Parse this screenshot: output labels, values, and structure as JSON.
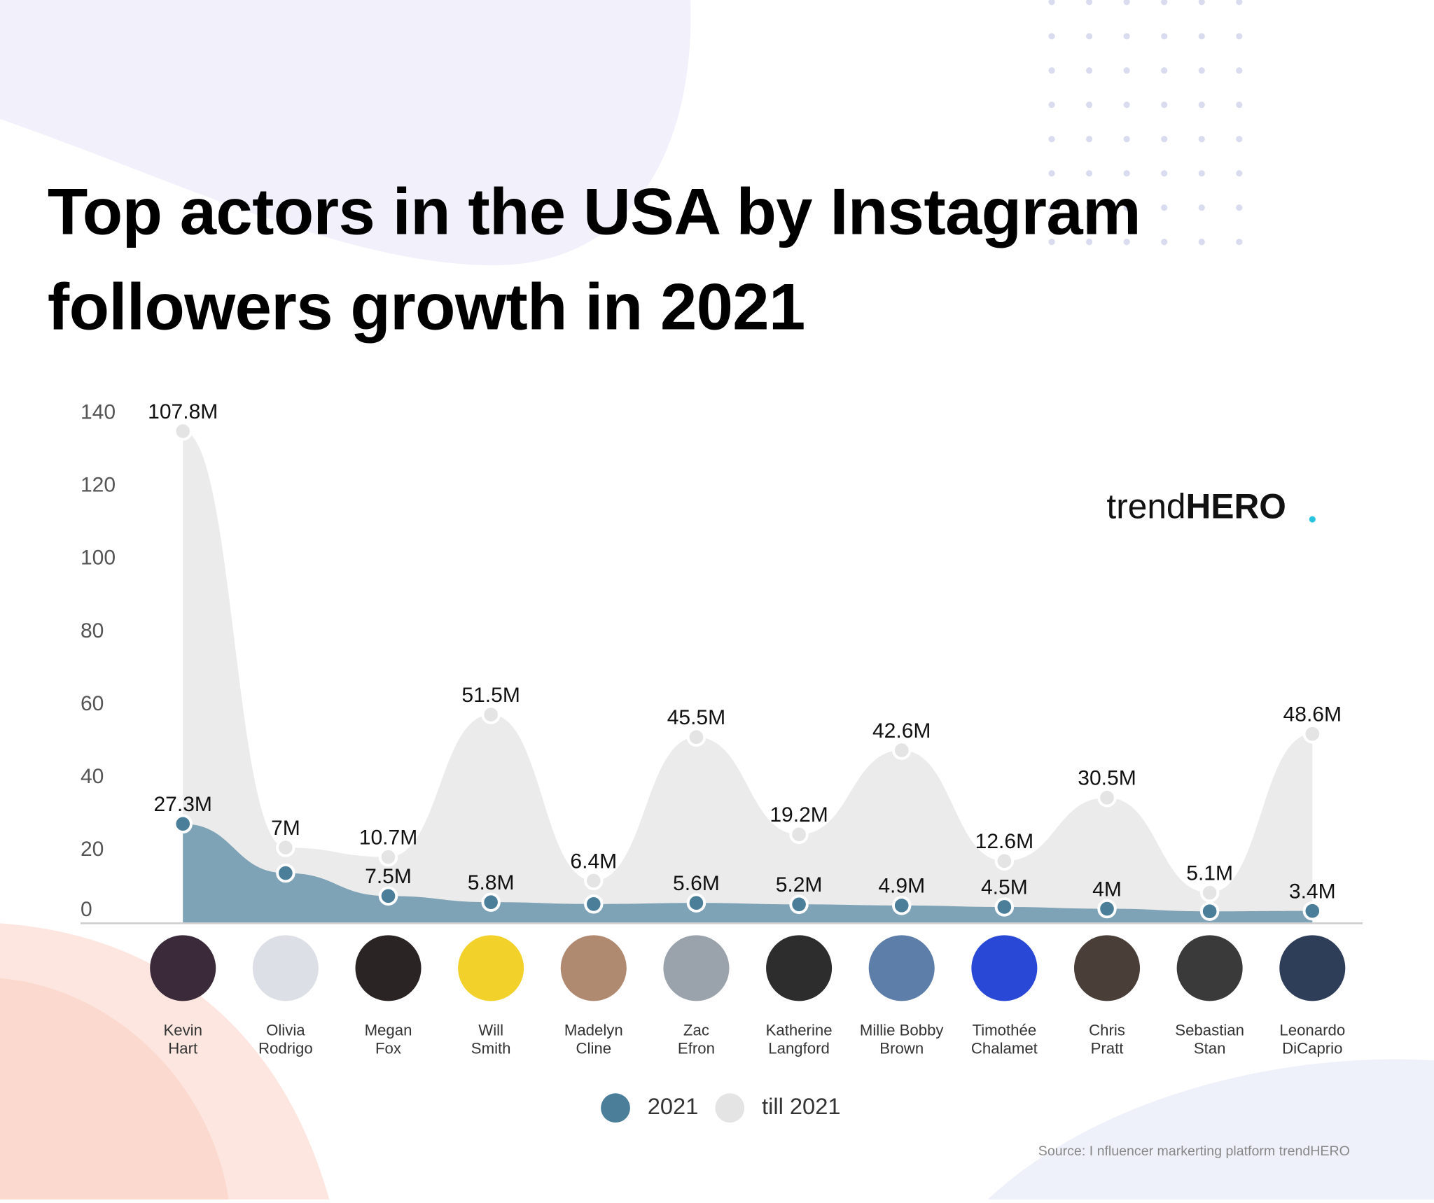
{
  "chart_data": {
    "type": "stacked-area",
    "title": "Top actors in the USA by Instagram followers growth in 2021",
    "categories": [
      "Kevin Hart",
      "Olivia Rodrigo",
      "Megan Fox",
      "Will Smith",
      "Madelyn Cline",
      "Zac Efron",
      "Katherine Langford",
      "Millie Bobby Brown",
      "Timothée Chalamet",
      "Chris Pratt",
      "Sebastian Stan",
      "Leonardo DiCaprio"
    ],
    "series": [
      {
        "name": "2021",
        "color": "#4b7f99",
        "values": [
          27.3,
          13.8,
          7.5,
          5.8,
          5.3,
          5.6,
          5.2,
          4.9,
          4.5,
          4,
          3.3,
          3.4
        ],
        "value_labels": [
          "27.3M",
          null,
          "7.5M",
          "5.8M",
          null,
          "5.6M",
          "5.2M",
          "4.9M",
          "4.5M",
          "4M",
          null,
          "3.4M"
        ]
      },
      {
        "name": "till 2021",
        "color": "#e4e4e4",
        "values": [
          107.8,
          7,
          10.7,
          51.5,
          6.4,
          45.5,
          19.2,
          42.6,
          12.6,
          30.5,
          5.1,
          48.6
        ],
        "value_labels": [
          "107.8M",
          "7M",
          "10.7M",
          "51.5M",
          "6.4M",
          "45.5M",
          "19.2M",
          "42.6M",
          "12.6M",
          "30.5M",
          "5.1M",
          "48.6M"
        ]
      }
    ],
    "ylim": [
      0,
      140
    ],
    "yticks": [
      0,
      20,
      40,
      60,
      80,
      100,
      120,
      140
    ]
  },
  "logo": {
    "light": "trend",
    "bold": "HERO"
  },
  "source": "Source: I nfluencer markerting platform trendHERO"
}
